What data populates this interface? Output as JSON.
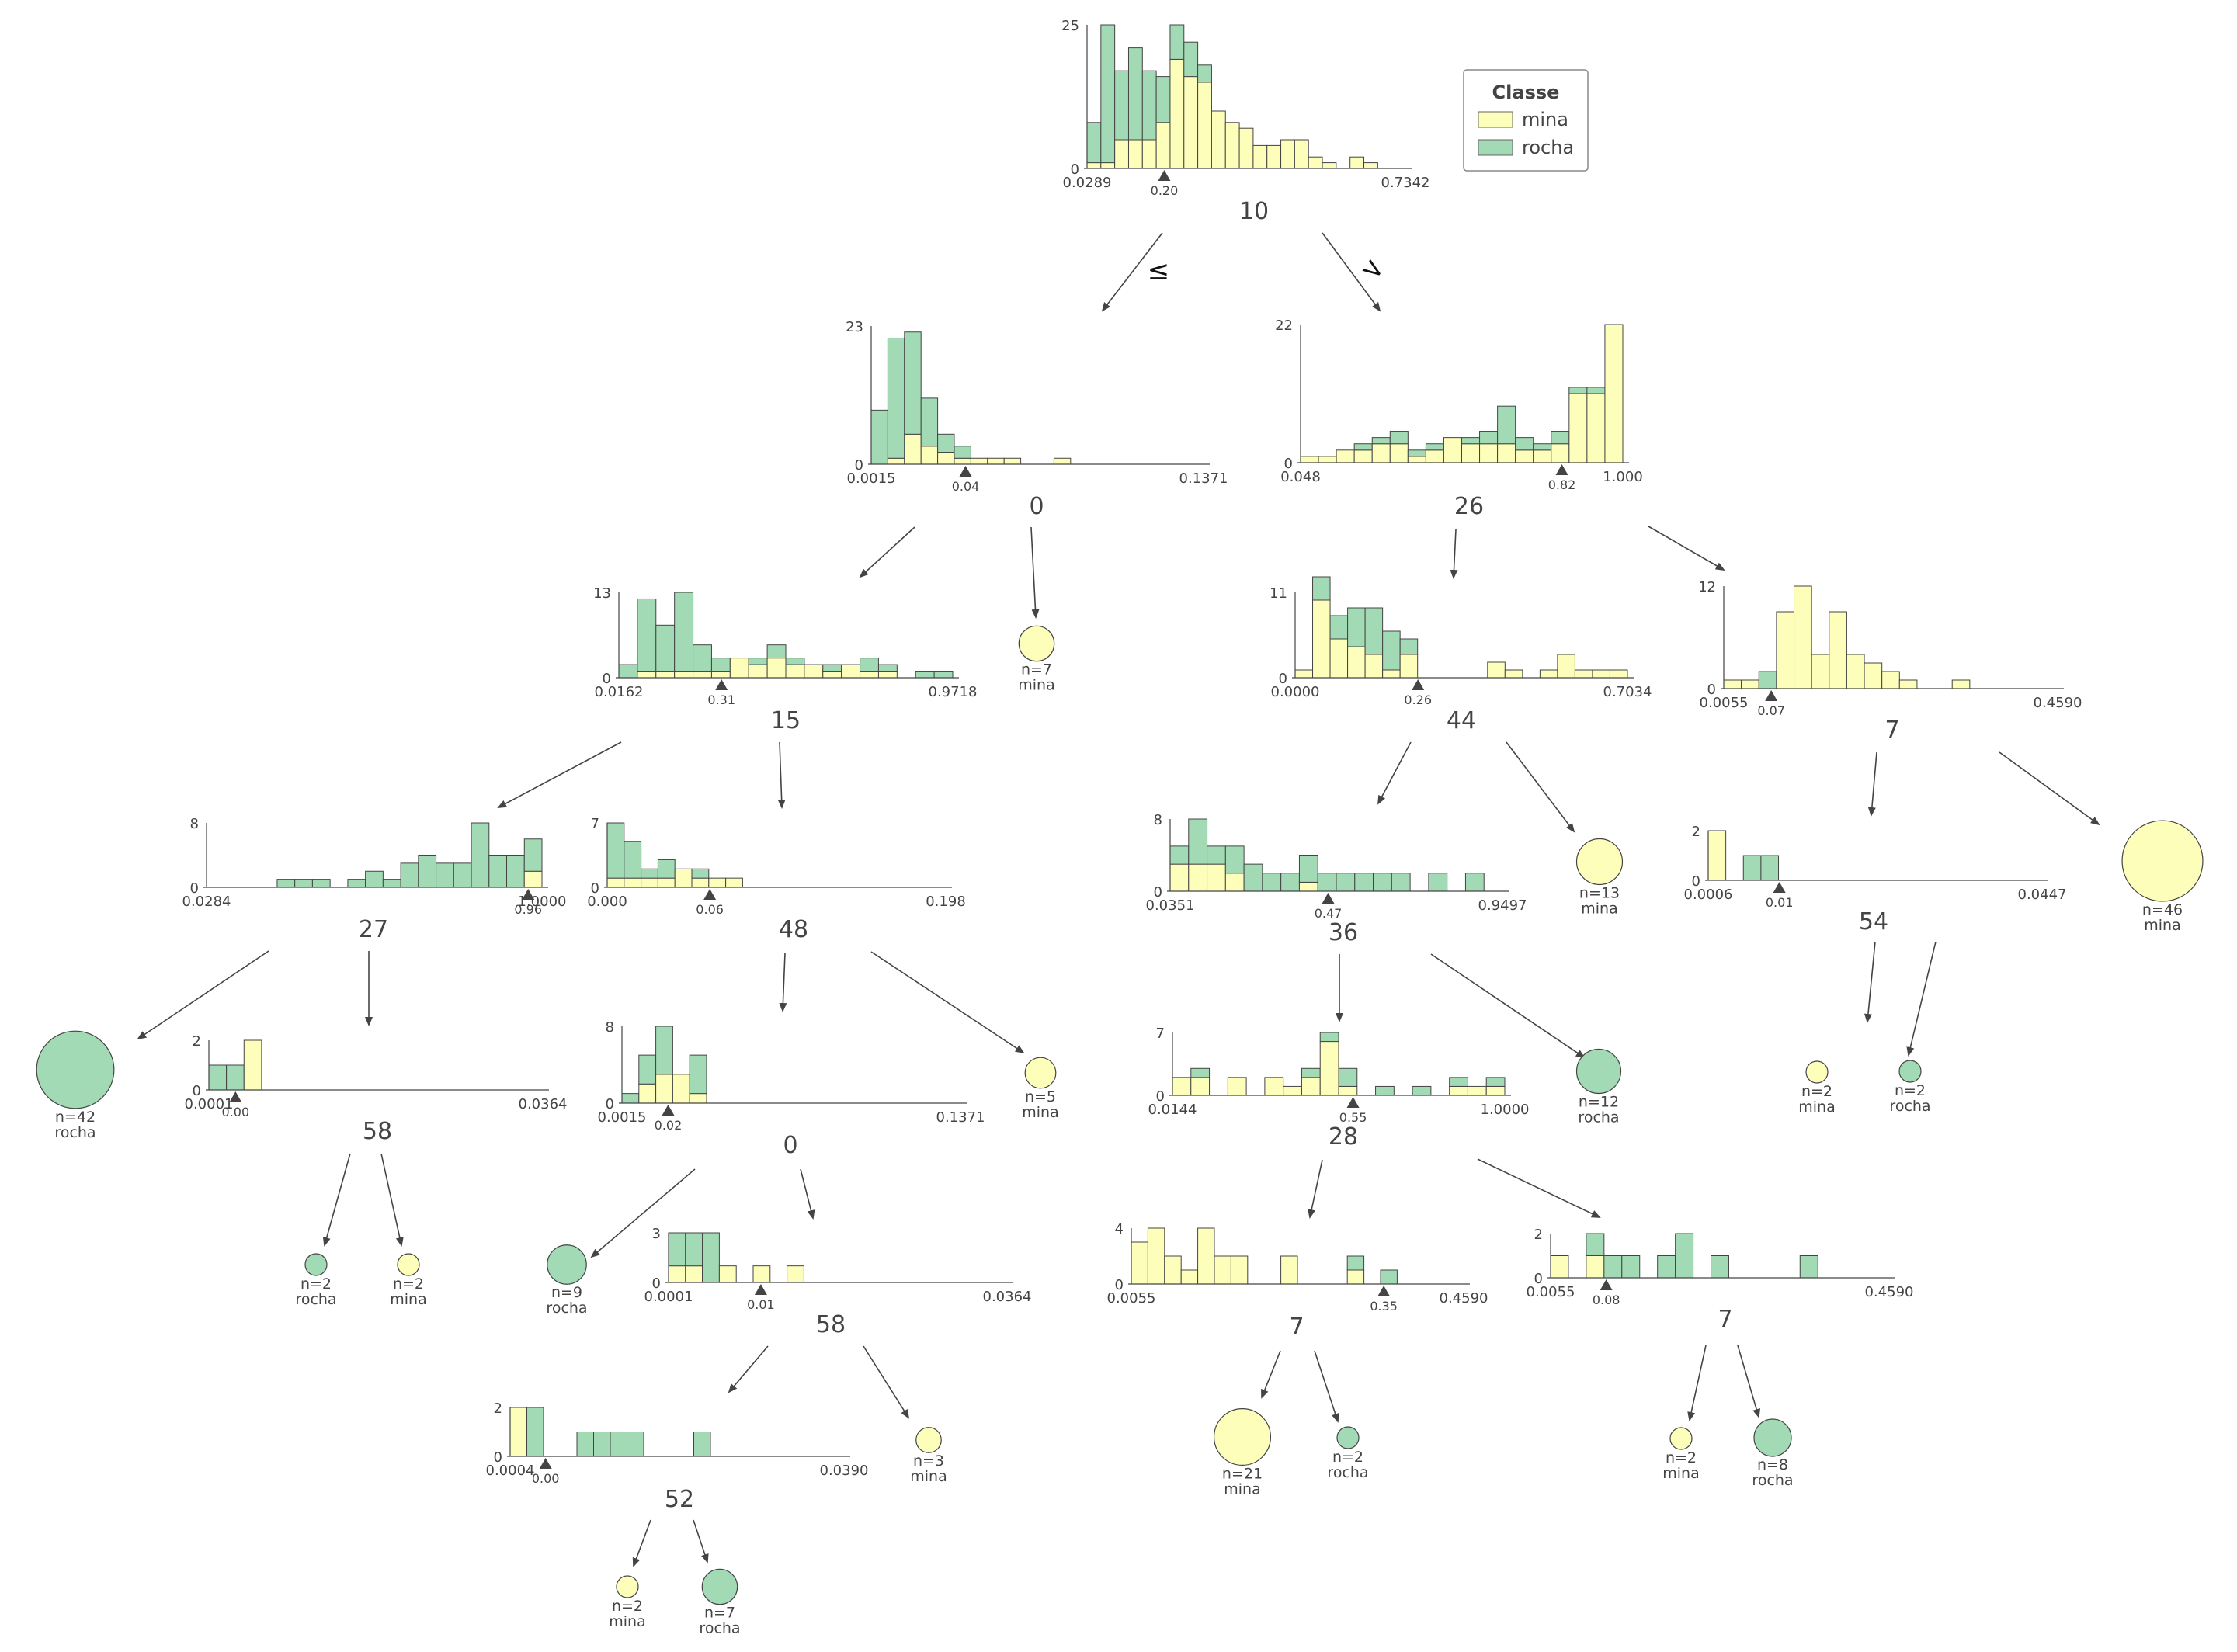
{
  "legend": {
    "title": "Classe",
    "items": [
      {
        "label": "mina",
        "color": "#fefebb"
      },
      {
        "label": "rocha",
        "color": "#a1dab4"
      }
    ]
  },
  "colors": {
    "mina": "#fefebb",
    "rocha": "#a1dab4",
    "edge": "#444444"
  },
  "edge_labels": {
    "le": "≤",
    "gt": ">"
  },
  "nodes": [
    {
      "id": "n0",
      "feature": "10",
      "threshold": "0.20",
      "thr": 0.2,
      "xmin_label": "0.0289",
      "xmax_label": "0.7342",
      "xmin": 0.0289,
      "xmax": 0.7342,
      "ymax": 25,
      "ymax_label": "25",
      "mina": [
        1,
        1,
        5,
        5,
        5,
        8,
        19,
        16,
        15,
        10,
        8,
        7,
        4,
        4,
        5,
        5,
        2,
        1,
        0,
        2,
        1,
        0,
        0
      ],
      "rocha": [
        7,
        24,
        12,
        16,
        12,
        8,
        6,
        6,
        3,
        0,
        0,
        0,
        0,
        0,
        0,
        0,
        0,
        0,
        0,
        0,
        0,
        0,
        0
      ]
    },
    {
      "id": "n1",
      "feature": "0",
      "threshold": "0.04",
      "thr": 0.04,
      "xmin_label": "0.0015",
      "xmax_label": "0.1371",
      "xmin": 0.0015,
      "xmax": 0.1371,
      "ymax": 23,
      "ymax_label": "23",
      "mina": [
        0,
        1,
        5,
        3,
        2,
        1,
        1,
        1,
        1,
        0,
        0,
        1,
        0,
        0,
        0,
        0,
        0,
        0,
        0,
        0
      ],
      "rocha": [
        9,
        20,
        17,
        8,
        3,
        2,
        0,
        0,
        0,
        0,
        0,
        0,
        0,
        0,
        0,
        0,
        0,
        0,
        0,
        0
      ]
    },
    {
      "id": "n2",
      "feature": "26",
      "threshold": "0.82",
      "thr": 0.82,
      "xmin_label": "0.048",
      "xmax_label": "1.000",
      "xmin": 0.048,
      "xmax": 1.0,
      "ymax": 22,
      "ymax_label": "22",
      "mina": [
        1,
        1,
        2,
        2,
        3,
        3,
        1,
        2,
        4,
        3,
        3,
        3,
        2,
        2,
        3,
        11,
        11,
        22
      ],
      "rocha": [
        0,
        0,
        0,
        1,
        1,
        2,
        1,
        1,
        0,
        1,
        2,
        6,
        2,
        1,
        2,
        1,
        1,
        0
      ]
    },
    {
      "id": "n3",
      "feature": "15",
      "threshold": "0.31",
      "thr": 0.31,
      "xmin_label": "0.0162",
      "xmax_label": "0.9718",
      "xmin": 0.0162,
      "xmax": 0.9718,
      "ymax": 13,
      "ymax_label": "13",
      "mina": [
        0,
        1,
        1,
        1,
        1,
        1,
        3,
        2,
        3,
        2,
        2,
        1,
        2,
        1,
        1,
        0,
        0,
        0
      ],
      "rocha": [
        2,
        11,
        7,
        12,
        4,
        2,
        0,
        1,
        2,
        1,
        0,
        1,
        0,
        2,
        1,
        0,
        1,
        1
      ]
    },
    {
      "id": "n4",
      "feature": "44",
      "threshold": "0.26",
      "thr": 0.26,
      "xmin_label": "0.0000",
      "xmax_label": "0.7034",
      "xmin": 0.0,
      "xmax": 0.7034,
      "ymax": 11,
      "ymax_label": "11",
      "mina": [
        1,
        10,
        5,
        4,
        3,
        1,
        3,
        0,
        0,
        0,
        0,
        2,
        1,
        0,
        1,
        3,
        1,
        1,
        1
      ],
      "rocha": [
        0,
        3,
        3,
        5,
        6,
        5,
        2,
        0,
        0,
        0,
        0,
        0,
        0,
        0,
        0,
        0,
        0,
        0,
        0
      ]
    },
    {
      "id": "n5",
      "feature": "7",
      "threshold": "0.07",
      "thr": 0.07,
      "xmin_label": "0.0055",
      "xmax_label": "0.4590",
      "xmin": 0.0055,
      "xmax": 0.459,
      "ymax": 12,
      "ymax_label": "12",
      "mina": [
        1,
        1,
        0,
        9,
        12,
        4,
        9,
        4,
        3,
        2,
        1,
        0,
        0,
        1,
        0,
        0,
        0,
        0,
        0
      ],
      "rocha": [
        0,
        0,
        2,
        0,
        0,
        0,
        0,
        0,
        0,
        0,
        0,
        0,
        0,
        0,
        0,
        0,
        0,
        0,
        0
      ]
    },
    {
      "id": "n6",
      "feature": "27",
      "threshold": "0.96",
      "thr": 0.96,
      "xmin_label": "0.0284",
      "xmax_label": "1.0000",
      "xmin": 0.0284,
      "xmax": 1.0,
      "ymax": 8,
      "ymax_label": "8",
      "mina": [
        0,
        0,
        0,
        0,
        0,
        0,
        0,
        0,
        0,
        0,
        0,
        0,
        0,
        0,
        0,
        0,
        0,
        0,
        2
      ],
      "rocha": [
        0,
        0,
        0,
        0,
        1,
        1,
        1,
        0,
        1,
        2,
        1,
        3,
        4,
        3,
        3,
        8,
        4,
        4,
        4
      ]
    },
    {
      "id": "n7",
      "feature": "48",
      "threshold": "0.06",
      "thr": 0.06,
      "xmin_label": "0.000",
      "xmax_label": "0.198",
      "xmin": 0.0,
      "xmax": 0.198,
      "ymax": 7,
      "ymax_label": "7",
      "mina": [
        1,
        1,
        1,
        1,
        2,
        1,
        1,
        1,
        0,
        0,
        0,
        0,
        0,
        0,
        0,
        0,
        0,
        0,
        0,
        0
      ],
      "rocha": [
        6,
        4,
        1,
        2,
        0,
        1,
        0,
        0,
        0,
        0,
        0,
        0,
        0,
        0,
        0,
        0,
        0,
        0,
        0,
        0
      ]
    },
    {
      "id": "n8",
      "feature": "36",
      "threshold": "0.47",
      "thr": 0.47,
      "xmin_label": "0.0351",
      "xmax_label": "0.9497",
      "xmin": 0.0351,
      "xmax": 0.9497,
      "ymax": 8,
      "ymax_label": "8",
      "mina": [
        3,
        3,
        3,
        2,
        0,
        0,
        0,
        1,
        0,
        0,
        0,
        0,
        0,
        0,
        0,
        0,
        0,
        0
      ],
      "rocha": [
        2,
        5,
        2,
        3,
        3,
        2,
        2,
        3,
        2,
        2,
        2,
        2,
        2,
        0,
        2,
        0,
        2,
        0
      ]
    },
    {
      "id": "n9",
      "feature": "54",
      "threshold": "0.01",
      "thr": 0.01,
      "xmin_label": "0.0006",
      "xmax_label": "0.0447",
      "xmin": 0.0006,
      "xmax": 0.0447,
      "ymax": 2,
      "ymax_label": "2",
      "mina": [
        2,
        0,
        0,
        0,
        0,
        0,
        0,
        0,
        0,
        0,
        0,
        0,
        0,
        0,
        0,
        0,
        0,
        0,
        0
      ],
      "rocha": [
        0,
        0,
        1,
        1,
        0,
        0,
        0,
        0,
        0,
        0,
        0,
        0,
        0,
        0,
        0,
        0,
        0,
        0,
        0
      ]
    },
    {
      "id": "n10",
      "feature": "58",
      "threshold": "0.00",
      "thr": 0.003,
      "xmin_label": "0.0001",
      "xmax_label": "0.0364",
      "xmin": 0.0001,
      "xmax": 0.0364,
      "ymax": 2,
      "ymax_label": "2",
      "mina": [
        0,
        0,
        2,
        0,
        0,
        0,
        0,
        0,
        0,
        0,
        0,
        0,
        0,
        0,
        0,
        0,
        0,
        0,
        0
      ],
      "rocha": [
        1,
        1,
        0,
        0,
        0,
        0,
        0,
        0,
        0,
        0,
        0,
        0,
        0,
        0,
        0,
        0,
        0,
        0,
        0
      ]
    },
    {
      "id": "n11",
      "feature": "0",
      "threshold": "0.02",
      "thr": 0.02,
      "xmin_label": "0.0015",
      "xmax_label": "0.1371",
      "xmin": 0.0015,
      "xmax": 0.1371,
      "ymax": 8,
      "ymax_label": "8",
      "mina": [
        0,
        2,
        3,
        3,
        1,
        0,
        0,
        0,
        0,
        0,
        0,
        0,
        0,
        0,
        0,
        0,
        0,
        0,
        0,
        0
      ],
      "rocha": [
        1,
        3,
        5,
        0,
        4,
        0,
        0,
        0,
        0,
        0,
        0,
        0,
        0,
        0,
        0,
        0,
        0,
        0,
        0,
        0
      ]
    },
    {
      "id": "n12",
      "feature": "28",
      "threshold": "0.55",
      "thr": 0.55,
      "xmin_label": "0.0144",
      "xmax_label": "1.0000",
      "xmin": 0.0144,
      "xmax": 1.0,
      "ymax": 7,
      "ymax_label": "7",
      "mina": [
        2,
        2,
        0,
        2,
        0,
        2,
        1,
        2,
        6,
        1,
        0,
        0,
        0,
        0,
        0,
        1,
        1,
        1
      ],
      "rocha": [
        0,
        1,
        0,
        0,
        0,
        0,
        0,
        1,
        1,
        2,
        0,
        1,
        0,
        1,
        0,
        1,
        0,
        1
      ]
    },
    {
      "id": "n13",
      "feature": "58",
      "threshold": "0.01",
      "thr": 0.01,
      "xmin_label": "0.0001",
      "xmax_label": "0.0364",
      "xmin": 0.0001,
      "xmax": 0.0364,
      "ymax": 3,
      "ymax_label": "3",
      "mina": [
        1,
        1,
        0,
        1,
        0,
        1,
        0,
        1,
        0,
        0,
        0,
        0,
        0,
        0,
        0,
        0,
        0,
        0,
        0,
        0
      ],
      "rocha": [
        2,
        2,
        3,
        0,
        0,
        0,
        0,
        0,
        0,
        0,
        0,
        0,
        0,
        0,
        0,
        0,
        0,
        0,
        0,
        0
      ]
    },
    {
      "id": "n14",
      "feature": "7",
      "threshold": "0.35",
      "thr": 0.35,
      "xmin_label": "0.0055",
      "xmax_label": "0.4590",
      "xmin": 0.0055,
      "xmax": 0.459,
      "ymax": 4,
      "ymax_label": "4",
      "mina": [
        3,
        4,
        2,
        1,
        4,
        2,
        2,
        0,
        0,
        2,
        0,
        0,
        0,
        1,
        0,
        0,
        0,
        0,
        0,
        0
      ],
      "rocha": [
        0,
        0,
        0,
        0,
        0,
        0,
        0,
        0,
        0,
        0,
        0,
        0,
        0,
        1,
        0,
        1,
        0,
        0,
        0,
        0
      ]
    },
    {
      "id": "n15",
      "feature": "7",
      "threshold": "0.08",
      "thr": 0.08,
      "xmin_label": "0.0055",
      "xmax_label": "0.4590",
      "xmin": 0.0055,
      "xmax": 0.459,
      "ymax": 2,
      "ymax_label": "2",
      "mina": [
        1,
        0,
        1,
        0,
        0,
        0,
        0,
        0,
        0,
        0,
        0,
        0,
        0,
        0,
        0,
        0,
        0,
        0,
        0
      ],
      "rocha": [
        0,
        0,
        1,
        1,
        1,
        0,
        1,
        2,
        0,
        1,
        0,
        0,
        0,
        0,
        1,
        0,
        0,
        0,
        0
      ]
    },
    {
      "id": "n16",
      "feature": "52",
      "threshold": "0.00",
      "thr": 0.0045,
      "xmin_label": "0.0004",
      "xmax_label": "0.0390",
      "xmin": 0.0004,
      "xmax": 0.039,
      "ymax": 2,
      "ymax_label": "2",
      "mina": [
        2,
        0,
        0,
        0,
        0,
        0,
        0,
        0,
        0,
        0,
        0,
        0,
        0,
        0,
        0,
        0,
        0,
        0,
        0,
        0
      ],
      "rocha": [
        0,
        2,
        0,
        0,
        1,
        1,
        1,
        1,
        0,
        0,
        0,
        1,
        0,
        0,
        0,
        0,
        0,
        0,
        0,
        0
      ]
    }
  ],
  "leaves": [
    {
      "id": "L1",
      "n_label": "n=7",
      "n": 7,
      "class": "mina"
    },
    {
      "id": "L2",
      "n_label": "n=13",
      "n": 13,
      "class": "mina"
    },
    {
      "id": "L3",
      "n_label": "n=46",
      "n": 46,
      "class": "mina"
    },
    {
      "id": "L4",
      "n_label": "n=42",
      "n": 42,
      "class": "rocha"
    },
    {
      "id": "L5",
      "n_label": "n=5",
      "n": 5,
      "class": "mina"
    },
    {
      "id": "L6",
      "n_label": "n=12",
      "n": 12,
      "class": "rocha"
    },
    {
      "id": "L7",
      "n_label": "n=2",
      "n": 2,
      "class": "mina"
    },
    {
      "id": "L8",
      "n_label": "n=2",
      "n": 2,
      "class": "rocha"
    },
    {
      "id": "L9",
      "n_label": "n=2",
      "n": 2,
      "class": "rocha"
    },
    {
      "id": "L10",
      "n_label": "n=2",
      "n": 2,
      "class": "mina"
    },
    {
      "id": "L11",
      "n_label": "n=9",
      "n": 9,
      "class": "rocha"
    },
    {
      "id": "L12",
      "n_label": "n=3",
      "n": 3,
      "class": "mina"
    },
    {
      "id": "L13",
      "n_label": "n=21",
      "n": 21,
      "class": "mina"
    },
    {
      "id": "L14",
      "n_label": "n=2",
      "n": 2,
      "class": "rocha"
    },
    {
      "id": "L15",
      "n_label": "n=2",
      "n": 2,
      "class": "mina"
    },
    {
      "id": "L16",
      "n_label": "n=8",
      "n": 8,
      "class": "rocha"
    },
    {
      "id": "L17",
      "n_label": "n=2",
      "n": 2,
      "class": "mina"
    },
    {
      "id": "L18",
      "n_label": "n=7",
      "n": 7,
      "class": "rocha"
    }
  ]
}
